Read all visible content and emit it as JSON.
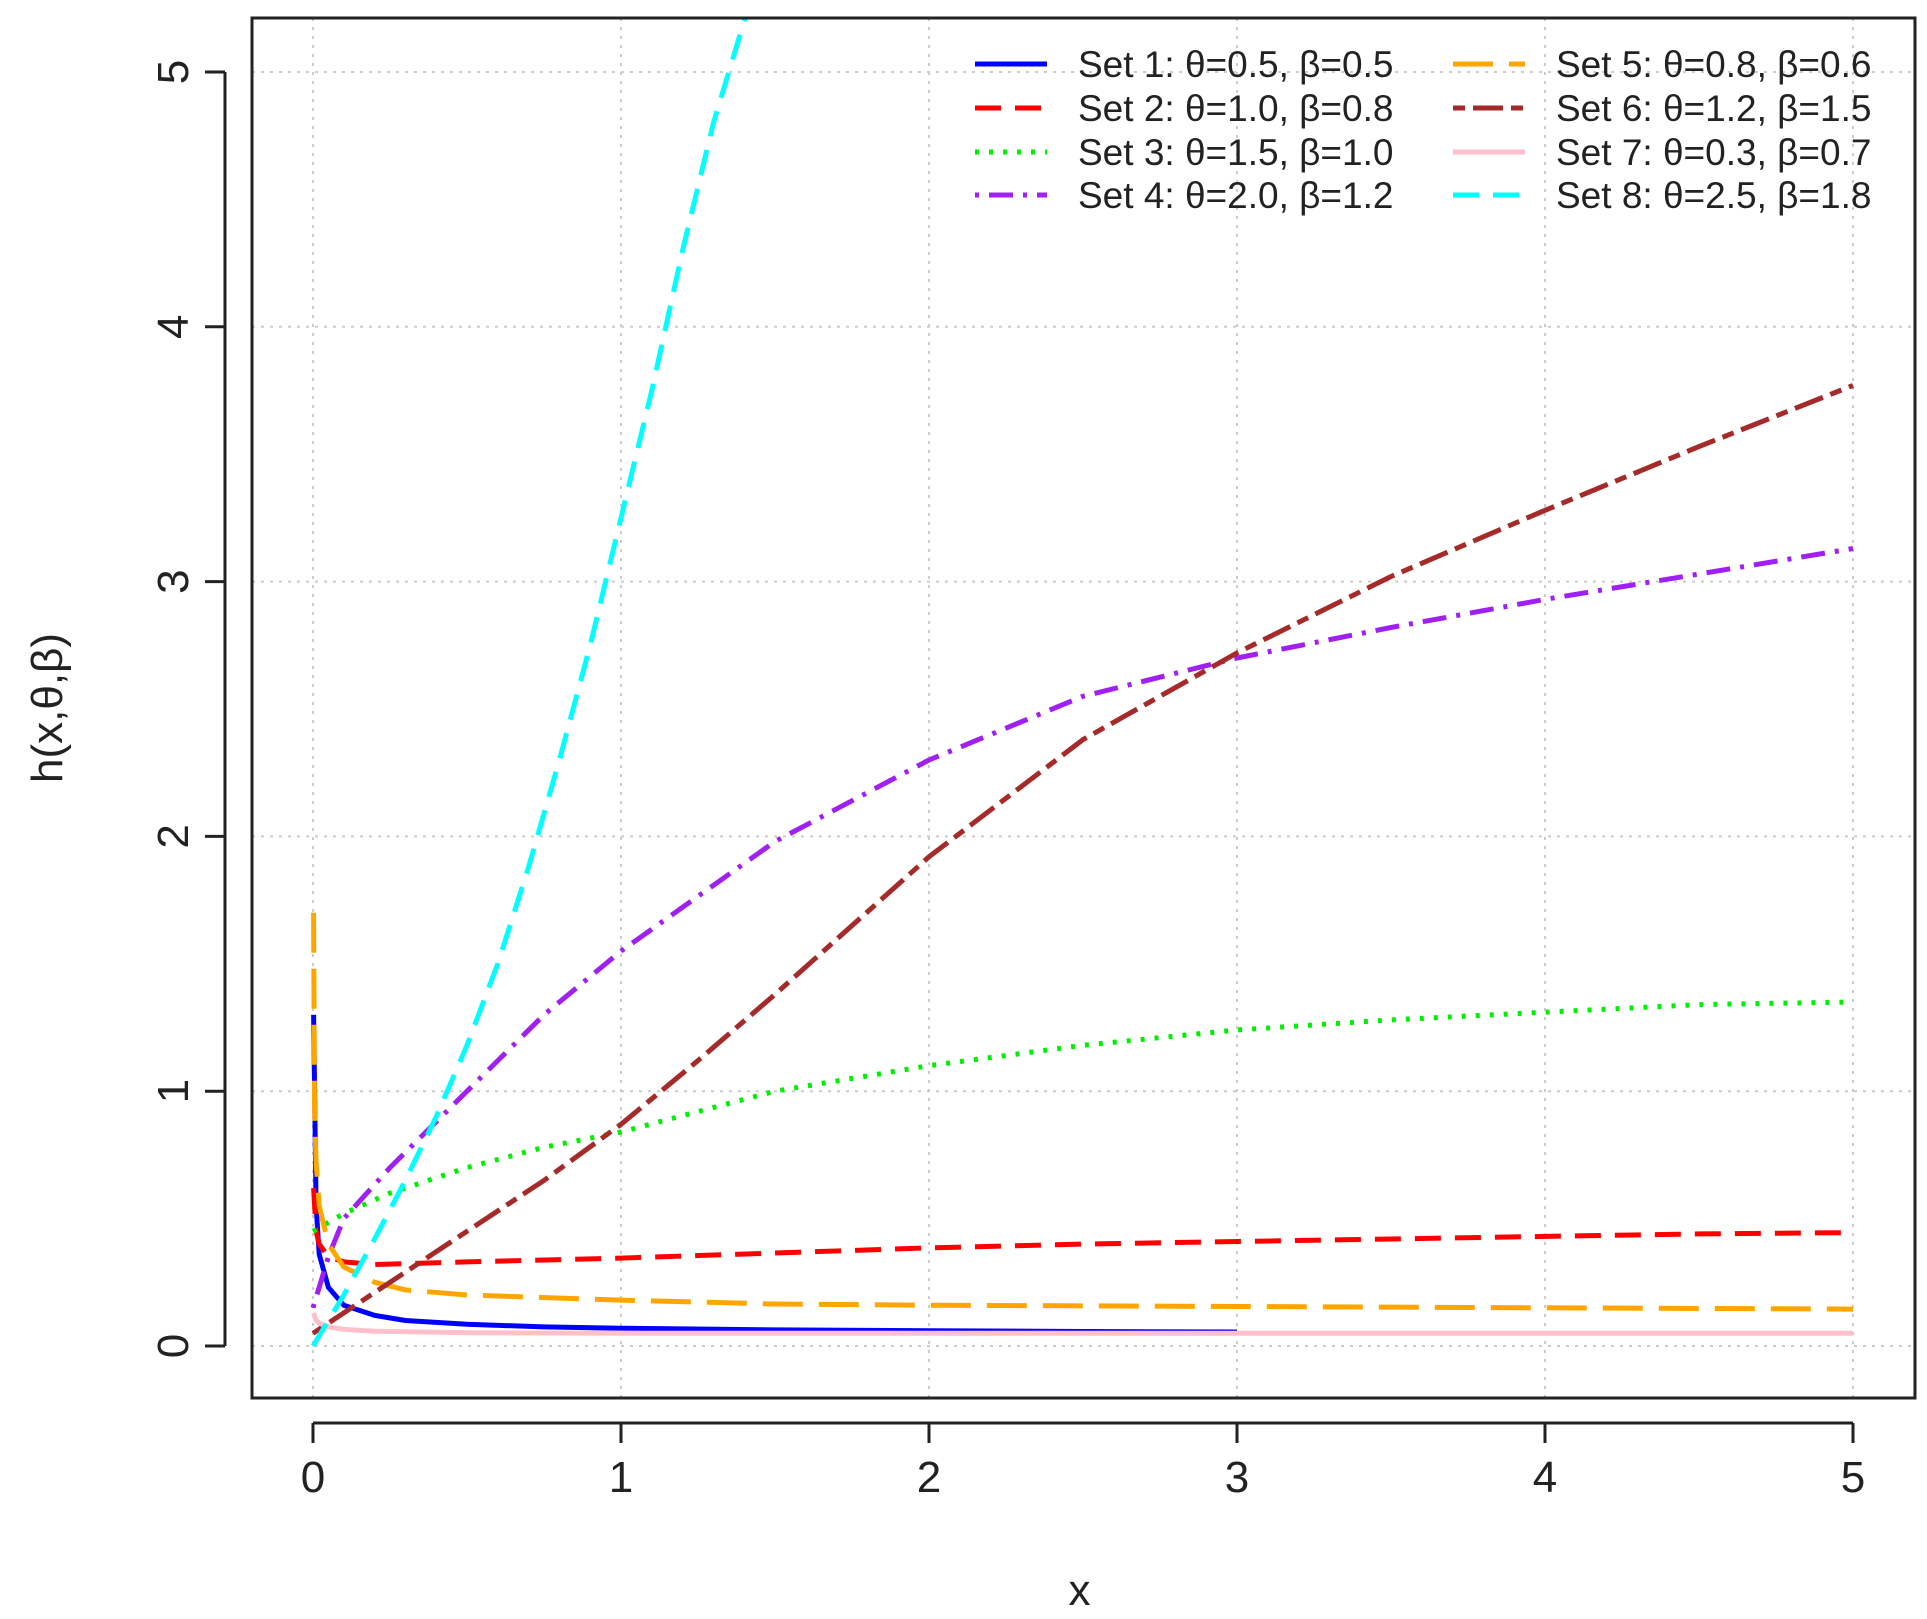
{
  "chart_data": {
    "type": "line",
    "title": "",
    "xlabel": "x",
    "ylabel": "h(x,θ,β)",
    "xlim": [
      -0.2,
      5.2
    ],
    "ylim": [
      -0.2,
      5.2
    ],
    "x_ticks": [
      "0",
      "1",
      "2",
      "3",
      "4",
      "5"
    ],
    "y_ticks": [
      "0",
      "1",
      "2",
      "3",
      "4",
      "5"
    ],
    "grid": true,
    "legend_position": "top-right",
    "series": [
      {
        "name": "Set 1: θ=0.5, β=0.5",
        "color": "#0000ff",
        "dash": "solid",
        "x": [
          0.002,
          0.01,
          0.02,
          0.05,
          0.1,
          0.2,
          0.3,
          0.5,
          0.75,
          1.0,
          1.5,
          2.0,
          2.5,
          3.0
        ],
        "y": [
          1.3,
          0.55,
          0.36,
          0.23,
          0.16,
          0.12,
          0.1,
          0.085,
          0.075,
          0.07,
          0.063,
          0.06,
          0.057,
          0.055
        ]
      },
      {
        "name": "Set 2: θ=1.0, β=0.8",
        "color": "#ff0000",
        "dash": "dashed",
        "x": [
          0.002,
          0.01,
          0.02,
          0.05,
          0.1,
          0.2,
          0.5,
          1.0,
          1.5,
          2.0,
          2.5,
          3.0,
          3.5,
          4.0,
          4.5,
          5.0
        ],
        "y": [
          0.62,
          0.45,
          0.4,
          0.35,
          0.33,
          0.32,
          0.33,
          0.345,
          0.365,
          0.385,
          0.4,
          0.41,
          0.42,
          0.43,
          0.44,
          0.445
        ]
      },
      {
        "name": "Set 3: θ=1.5, β=1.0",
        "color": "#00ee00",
        "dash": "dotted",
        "x": [
          0,
          0.1,
          0.25,
          0.5,
          0.75,
          1.0,
          1.25,
          1.5,
          2.0,
          2.5,
          3.0,
          3.5,
          4.0,
          4.5,
          5.0
        ],
        "y": [
          0.45,
          0.52,
          0.6,
          0.7,
          0.78,
          0.84,
          0.92,
          1.0,
          1.1,
          1.18,
          1.24,
          1.28,
          1.31,
          1.34,
          1.35
        ]
      },
      {
        "name": "Set 4: θ=2.0, β=1.2",
        "color": "#a020f0",
        "dash": "dashdot",
        "x": [
          0,
          0.05,
          0.1,
          0.25,
          0.5,
          0.75,
          1.0,
          1.5,
          2.0,
          2.5,
          3.0,
          3.5,
          4.0,
          4.5,
          5.0
        ],
        "y": [
          0.15,
          0.35,
          0.5,
          0.7,
          1.0,
          1.3,
          1.55,
          1.98,
          2.3,
          2.55,
          2.7,
          2.82,
          2.93,
          3.03,
          3.13
        ]
      },
      {
        "name": "Set 5: θ=0.8, β=0.6",
        "color": "#ffa500",
        "dash": "longdash",
        "x": [
          0.002,
          0.005,
          0.01,
          0.02,
          0.05,
          0.1,
          0.2,
          0.3,
          0.5,
          1.0,
          1.5,
          2.0,
          3.0,
          4.0,
          5.0
        ],
        "y": [
          1.7,
          0.95,
          0.72,
          0.55,
          0.4,
          0.31,
          0.25,
          0.22,
          0.2,
          0.18,
          0.165,
          0.16,
          0.155,
          0.15,
          0.145
        ]
      },
      {
        "name": "Set 6: θ=1.2, β=1.5",
        "color": "#a52a2a",
        "dash": "twodash",
        "x": [
          0,
          0.25,
          0.5,
          0.75,
          1.0,
          1.25,
          1.5,
          2.0,
          2.5,
          3.0,
          3.5,
          4.0,
          4.5,
          5.0
        ],
        "y": [
          0.05,
          0.25,
          0.45,
          0.65,
          0.87,
          1.12,
          1.38,
          1.92,
          2.38,
          2.72,
          3.02,
          3.28,
          3.53,
          3.77
        ]
      },
      {
        "name": "Set 7: θ=0.3, β=0.7",
        "color": "#ffc0cb",
        "dash": "solid",
        "x": [
          0.002,
          0.01,
          0.02,
          0.05,
          0.1,
          0.2,
          0.5,
          1.0,
          2.0,
          3.0,
          4.0,
          5.0
        ],
        "y": [
          0.13,
          0.1,
          0.09,
          0.075,
          0.065,
          0.058,
          0.052,
          0.05,
          0.05,
          0.05,
          0.05,
          0.05
        ]
      },
      {
        "name": "Set 8: θ=2.5, β=1.8",
        "color": "#00ffff",
        "dash": "dashed",
        "x": [
          0,
          0.1,
          0.2,
          0.3,
          0.4,
          0.5,
          0.6,
          0.7,
          0.8,
          0.9,
          1.0,
          1.1,
          1.2,
          1.3,
          1.4,
          1.5
        ],
        "y": [
          0.0,
          0.2,
          0.42,
          0.65,
          0.9,
          1.18,
          1.5,
          1.88,
          2.3,
          2.75,
          3.25,
          3.75,
          4.3,
          4.8,
          5.2,
          5.6
        ]
      }
    ]
  }
}
